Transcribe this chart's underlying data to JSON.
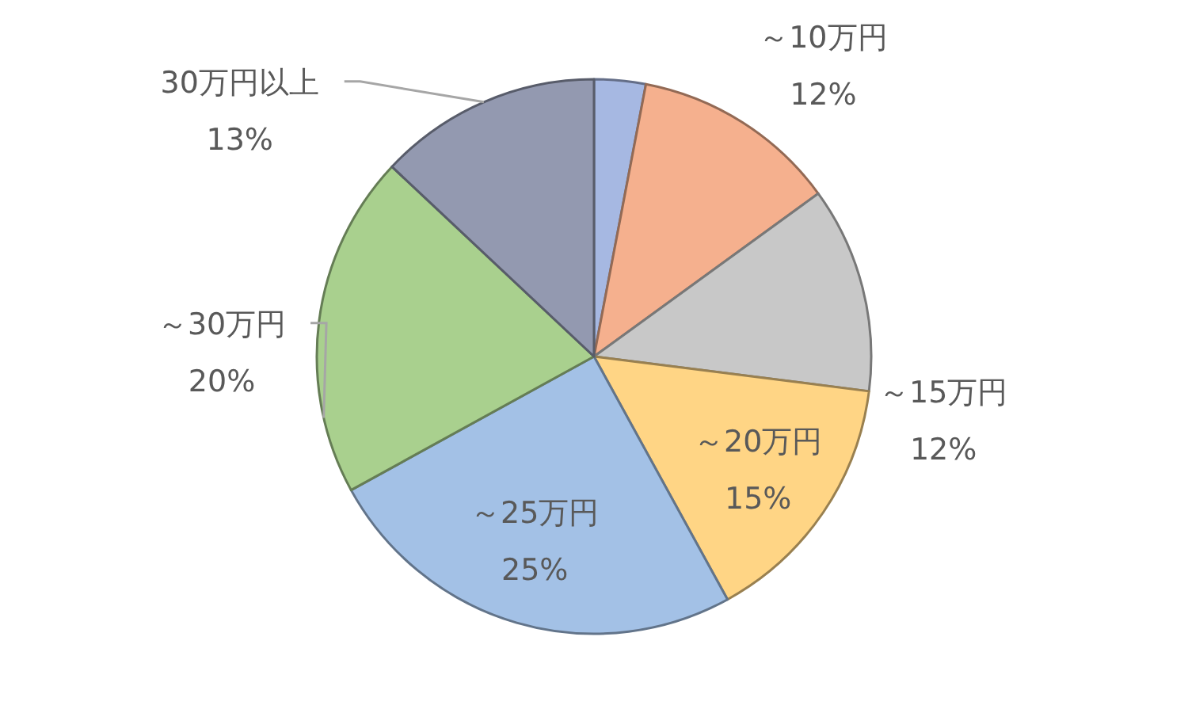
{
  "chart_data": {
    "type": "pie",
    "categories": [
      null,
      "～10万円",
      "～15万円",
      "～20万円",
      "～25万円",
      "～30万円",
      "30万円以上"
    ],
    "values": [
      3,
      12,
      12,
      15,
      25,
      20,
      13
    ],
    "value_labels": [
      null,
      "12%",
      "12%",
      "15%",
      "25%",
      "20%",
      "13%"
    ],
    "colors": [
      "#a6b8e2",
      "#f5b08e",
      "#c8c8c8",
      "#ffd585",
      "#a3c1e6",
      "#a9d08e",
      "#9399b0"
    ]
  }
}
